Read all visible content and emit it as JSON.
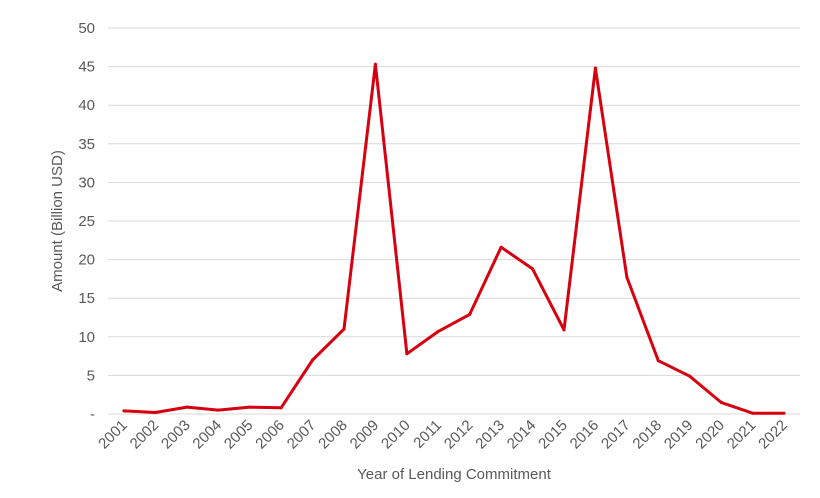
{
  "chart_data": {
    "type": "line",
    "title": "",
    "xlabel": "Year of Lending Commitment",
    "ylabel": "Amount (Billion USD)",
    "ylim": [
      0,
      50
    ],
    "yticks": [
      0,
      5,
      10,
      15,
      20,
      25,
      30,
      35,
      40,
      45,
      50
    ],
    "ytick_labels": [
      "-",
      "5",
      "10",
      "15",
      "20",
      "25",
      "30",
      "35",
      "40",
      "45",
      "50"
    ],
    "grid": true,
    "legend": "none",
    "line_color": "#d7000f",
    "categories": [
      "2001",
      "2002",
      "2003",
      "2004",
      "2005",
      "2006",
      "2007",
      "2008",
      "2009",
      "2010",
      "2011",
      "2012",
      "2013",
      "2014",
      "2015",
      "2016",
      "2017",
      "2018",
      "2019",
      "2020",
      "2021",
      "2022"
    ],
    "values": [
      0.4,
      0.2,
      0.9,
      0.5,
      0.9,
      0.8,
      7.0,
      11.0,
      45.3,
      7.8,
      10.7,
      12.9,
      21.6,
      18.8,
      10.9,
      44.8,
      17.7,
      6.9,
      4.9,
      1.5,
      0.1,
      0.1
    ]
  }
}
